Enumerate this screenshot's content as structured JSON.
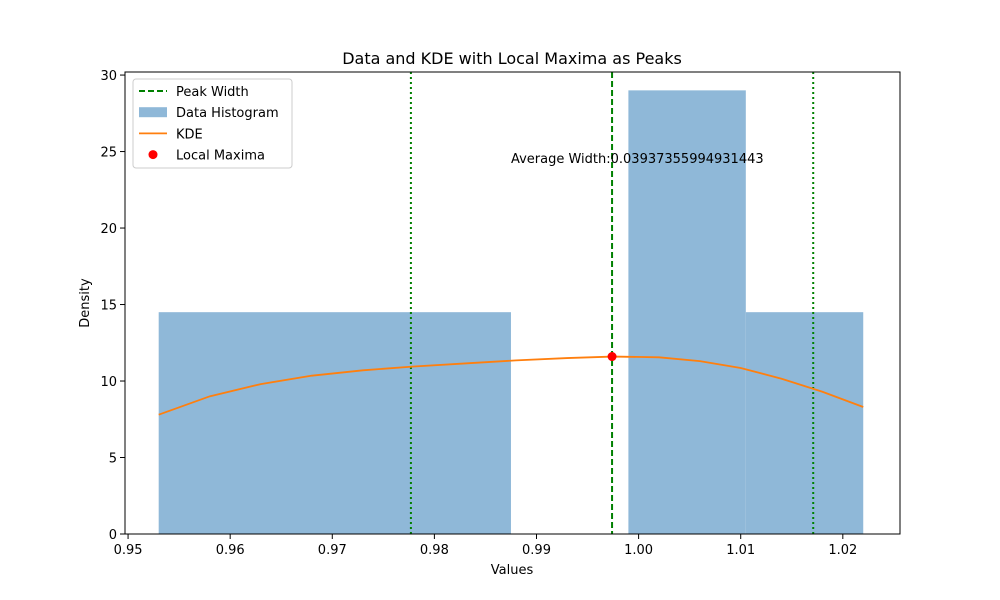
{
  "chart_data": {
    "type": "histogram",
    "title": "Data and KDE with Local Maxima as Peaks",
    "xlabel": "Values",
    "ylabel": "Density",
    "xlim": [
      0.9497,
      1.0256
    ],
    "ylim": [
      0,
      30.2
    ],
    "x_ticks": [
      0.95,
      0.96,
      0.97,
      0.98,
      0.99,
      1.0,
      1.01,
      1.02
    ],
    "x_tick_labels": [
      "0.95",
      "0.96",
      "0.97",
      "0.98",
      "0.99",
      "1.00",
      "1.01",
      "1.02"
    ],
    "y_ticks": [
      0,
      5,
      10,
      15,
      20,
      25,
      30
    ],
    "y_tick_labels": [
      "0",
      "5",
      "10",
      "15",
      "20",
      "25",
      "30"
    ],
    "grid": false,
    "legend_position": "upper-left",
    "histogram": {
      "name": "Data Histogram",
      "color": "#8fb8d8",
      "bins": [
        {
          "x0": 0.953,
          "x1": 0.9875,
          "density": 14.5
        },
        {
          "x0": 0.9875,
          "x1": 0.999,
          "density": 0
        },
        {
          "x0": 0.999,
          "x1": 1.0105,
          "density": 29.0
        },
        {
          "x0": 1.0105,
          "x1": 1.022,
          "density": 14.5
        }
      ]
    },
    "kde": {
      "name": "KDE",
      "color": "#ff7f0e",
      "x": [
        0.953,
        0.958,
        0.963,
        0.968,
        0.973,
        0.978,
        0.983,
        0.988,
        0.993,
        0.9975,
        1.002,
        1.006,
        1.01,
        1.014,
        1.018,
        1.022
      ],
      "y": [
        7.8,
        9.0,
        9.8,
        10.35,
        10.7,
        10.95,
        11.15,
        11.35,
        11.5,
        11.6,
        11.55,
        11.3,
        10.85,
        10.15,
        9.3,
        8.3
      ]
    },
    "local_maxima": {
      "name": "Local Maxima",
      "color": "#ff0000",
      "points": [
        {
          "x": 0.9974,
          "y": 11.6
        }
      ]
    },
    "peak_width": {
      "name": "Peak Width",
      "color": "#008000",
      "center": 0.9974,
      "left": 0.9777,
      "right": 1.0171
    },
    "annotation": {
      "text": "Average Width:0.03937355994931443",
      "x": 0.9875,
      "y": 24.5
    },
    "legend": [
      {
        "label": "Peak Width",
        "kind": "dashed-line",
        "color": "#008000"
      },
      {
        "label": "Data Histogram",
        "kind": "patch",
        "color": "#8fb8d8"
      },
      {
        "label": "KDE",
        "kind": "line",
        "color": "#ff7f0e"
      },
      {
        "label": "Local Maxima",
        "kind": "marker",
        "color": "#ff0000"
      }
    ]
  }
}
